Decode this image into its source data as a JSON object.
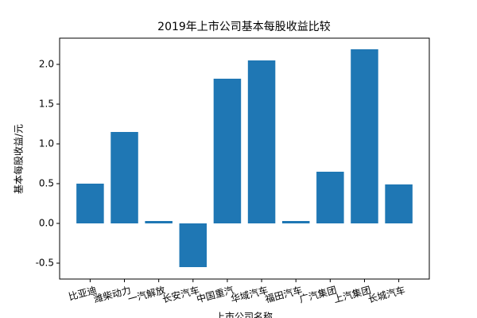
{
  "chart_data": {
    "type": "bar",
    "title": "2019年上市公司基本每股收益比较",
    "x_label": "上市公司名称",
    "y_label": "基本每股收益/元",
    "categories": [
      "比亚迪",
      "潍柴动力",
      "一汽解放",
      "长安汽车",
      "中国重汽",
      "华域汽车",
      "福田汽车",
      "广汽集团",
      "上汽集团",
      "长城汽车"
    ],
    "values": [
      0.5,
      1.15,
      0.03,
      -0.55,
      1.82,
      2.05,
      0.03,
      0.65,
      2.19,
      0.49
    ],
    "color": "#1f77b4",
    "ylim": [
      -0.7,
      2.33
    ],
    "yticks": [
      -0.5,
      {
        "value": 0,
        "label": "0.0"
      },
      0.5,
      {
        "value": 1,
        "label": "1.0"
      },
      1.5,
      {
        "value": 2,
        "label": "2.0"
      }
    ],
    "grid": false
  }
}
